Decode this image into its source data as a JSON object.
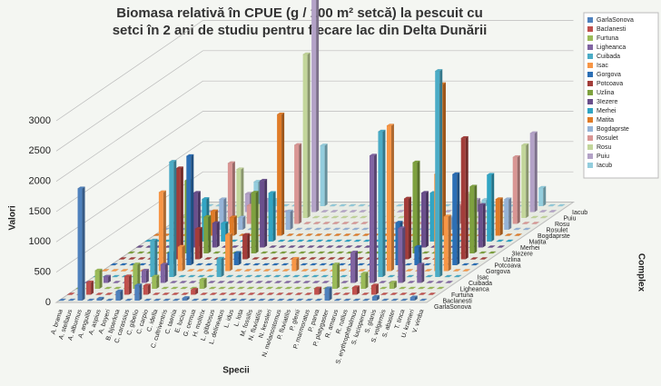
{
  "chart_data": {
    "type": "bar3d",
    "title": [
      "Biomasa relativă în CPUE (g /  100 m² setcă) la pescuit cu",
      "setci în 2 ani de studiu pentru fiecare lac din Delta Dunării"
    ],
    "x_label": "Specii",
    "y_label": "Valori",
    "z_label": "Complex",
    "ylim": [
      0,
      3000
    ],
    "yticks": [
      0,
      500,
      1000,
      1500,
      2000,
      2500,
      3000
    ],
    "grid": true,
    "legend": "right",
    "categories": [
      "A. brama",
      "A. stellatus",
      "A. alburnus",
      "A. anguilla",
      "A. aspius",
      "A. boyeri",
      "B. bjoerkna",
      "C. carassius",
      "C. gibelio",
      "C. carpio",
      "C. idella",
      "C. cultriventris",
      "C. taenia",
      "E. lucius",
      "G. cernua",
      "H. molitrix",
      "L. gibbosus",
      "L. delineatus",
      "L. idus",
      "L. lota",
      "M. fossilis",
      "N. fluviatilis",
      "N. kessleri",
      "N. melanostomus",
      "P. fluviatilis",
      "P. glenii",
      "P. marmoratus",
      "P. parva",
      "P. platygaster",
      "R. amarus",
      "R. rutilus",
      "S. erythrophthalmus",
      "S. lucioperca",
      "S. glanis",
      "S. volgensis",
      "S. abaster",
      "T. tinca",
      "U. krameri",
      "V. vimba"
    ],
    "series": [
      {
        "name": "GarlaSonova",
        "color": "#4f81bd",
        "values": [
          0,
          0,
          1850,
          0,
          30,
          0,
          150,
          0,
          250,
          0,
          0,
          0,
          0,
          40,
          0,
          0,
          0,
          0,
          0,
          0,
          0,
          0,
          0,
          0,
          0,
          0,
          0,
          0,
          200,
          0,
          0,
          0,
          0,
          60,
          0,
          0,
          0,
          50,
          0
        ]
      },
      {
        "name": "Baclanesti",
        "color": "#c0504d",
        "values": [
          0,
          0,
          200,
          0,
          0,
          0,
          300,
          0,
          150,
          0,
          0,
          0,
          0,
          80,
          0,
          0,
          0,
          0,
          0,
          0,
          0,
          0,
          0,
          0,
          0,
          0,
          100,
          0,
          0,
          0,
          120,
          0,
          150,
          0,
          0,
          0,
          0,
          0,
          0
        ]
      },
      {
        "name": "Furtuna",
        "color": "#9bbb59",
        "values": [
          0,
          0,
          300,
          0,
          0,
          0,
          400,
          0,
          200,
          0,
          0,
          0,
          0,
          150,
          0,
          0,
          0,
          0,
          0,
          0,
          0,
          0,
          0,
          0,
          0,
          0,
          0,
          400,
          0,
          0,
          250,
          0,
          0,
          100,
          0,
          0,
          0,
          0,
          0
        ]
      },
      {
        "name": "Ligheanca",
        "color": "#8064a2",
        "values": [
          0,
          0,
          100,
          0,
          0,
          0,
          200,
          0,
          300,
          0,
          0,
          0,
          0,
          0,
          0,
          0,
          0,
          0,
          0,
          0,
          0,
          0,
          0,
          0,
          0,
          0,
          0,
          0,
          500,
          0,
          2100,
          0,
          0,
          900,
          0,
          300,
          0,
          0,
          0
        ]
      },
      {
        "name": "Cuibada",
        "color": "#4bacc6",
        "values": [
          0,
          0,
          0,
          0,
          0,
          0,
          600,
          0,
          1900,
          0,
          0,
          0,
          0,
          300,
          0,
          0,
          0,
          0,
          0,
          0,
          0,
          0,
          0,
          0,
          0,
          0,
          0,
          0,
          0,
          0,
          2400,
          0,
          0,
          0,
          0,
          0,
          3400,
          0,
          0
        ]
      },
      {
        "name": "Isac",
        "color": "#f79646",
        "values": [
          0,
          0,
          0,
          0,
          0,
          0,
          1300,
          0,
          400,
          0,
          0,
          0,
          0,
          600,
          0,
          0,
          0,
          0,
          0,
          0,
          200,
          0,
          0,
          0,
          0,
          0,
          0,
          0,
          0,
          0,
          2400,
          0,
          0,
          0,
          0,
          1600,
          900,
          0,
          0
        ]
      },
      {
        "name": "Gorgova",
        "color": "#2c6fb5",
        "values": [
          0,
          0,
          0,
          0,
          0,
          0,
          200,
          0,
          1800,
          0,
          0,
          0,
          0,
          200,
          0,
          0,
          0,
          0,
          0,
          0,
          0,
          0,
          0,
          0,
          0,
          0,
          0,
          0,
          0,
          0,
          700,
          0,
          300,
          0,
          0,
          0,
          1500,
          0,
          0
        ]
      },
      {
        "name": "Potcoava",
        "color": "#a33d3a",
        "values": [
          0,
          0,
          0,
          0,
          0,
          0,
          1500,
          0,
          500,
          0,
          0,
          0,
          0,
          400,
          0,
          0,
          0,
          0,
          0,
          0,
          0,
          0,
          0,
          0,
          0,
          0,
          0,
          0,
          0,
          0,
          1000,
          0,
          0,
          0,
          0,
          0,
          2000,
          0,
          0
        ]
      },
      {
        "name": "Uzlina",
        "color": "#7ea13f",
        "values": [
          0,
          0,
          0,
          0,
          0,
          0,
          1200,
          0,
          600,
          0,
          0,
          0,
          0,
          1000,
          0,
          0,
          0,
          0,
          0,
          0,
          0,
          0,
          0,
          0,
          0,
          0,
          0,
          0,
          0,
          0,
          1500,
          0,
          0,
          0,
          0,
          0,
          1100,
          0,
          0
        ]
      },
      {
        "name": "3Iezere",
        "color": "#6a4f8c",
        "values": [
          0,
          0,
          0,
          0,
          0,
          0,
          900,
          0,
          400,
          0,
          0,
          0,
          0,
          1100,
          0,
          0,
          0,
          0,
          0,
          0,
          0,
          0,
          0,
          0,
          0,
          0,
          0,
          0,
          0,
          0,
          900,
          0,
          0,
          0,
          0,
          0,
          700,
          0,
          0
        ]
      },
      {
        "name": "Merhei",
        "color": "#31a5c4",
        "values": [
          0,
          0,
          0,
          0,
          0,
          0,
          700,
          0,
          300,
          0,
          0,
          0,
          0,
          800,
          0,
          0,
          0,
          0,
          0,
          0,
          0,
          0,
          0,
          0,
          0,
          0,
          0,
          0,
          0,
          0,
          800,
          0,
          0,
          0,
          0,
          0,
          1100,
          0,
          0
        ]
      },
      {
        "name": "Matita",
        "color": "#e07b27",
        "values": [
          0,
          0,
          0,
          0,
          0,
          0,
          400,
          0,
          300,
          0,
          0,
          0,
          0,
          2000,
          0,
          0,
          0,
          0,
          0,
          0,
          0,
          0,
          0,
          0,
          0,
          0,
          0,
          0,
          0,
          0,
          2500,
          0,
          0,
          0,
          0,
          0,
          600,
          0,
          0
        ]
      },
      {
        "name": "Bogdaprste",
        "color": "#95b3d7",
        "values": [
          0,
          0,
          0,
          0,
          0,
          0,
          500,
          0,
          200,
          0,
          0,
          0,
          0,
          300,
          0,
          0,
          0,
          0,
          0,
          0,
          0,
          0,
          0,
          0,
          0,
          0,
          0,
          0,
          0,
          0,
          200,
          0,
          0,
          0,
          0,
          0,
          500,
          0,
          0
        ]
      },
      {
        "name": "Rosulet",
        "color": "#d99694",
        "values": [
          0,
          0,
          0,
          0,
          0,
          0,
          1000,
          0,
          300,
          0,
          0,
          0,
          0,
          1300,
          0,
          0,
          0,
          0,
          0,
          0,
          0,
          0,
          0,
          0,
          0,
          0,
          0,
          0,
          0,
          0,
          300,
          0,
          0,
          0,
          0,
          0,
          1100,
          0,
          0
        ]
      },
      {
        "name": "Rosu",
        "color": "#c3d69b",
        "values": [
          0,
          0,
          0,
          0,
          0,
          0,
          800,
          0,
          200,
          0,
          0,
          0,
          0,
          2700,
          0,
          0,
          0,
          0,
          0,
          0,
          0,
          0,
          0,
          0,
          0,
          0,
          0,
          0,
          0,
          0,
          400,
          0,
          0,
          0,
          0,
          0,
          1200,
          0,
          0
        ]
      },
      {
        "name": "Puiu",
        "color": "#b3a2c7",
        "values": [
          0,
          0,
          0,
          0,
          0,
          0,
          300,
          0,
          200,
          0,
          0,
          0,
          0,
          3600,
          0,
          0,
          0,
          0,
          0,
          0,
          0,
          0,
          0,
          0,
          0,
          0,
          0,
          0,
          0,
          0,
          200,
          0,
          0,
          0,
          0,
          0,
          1300,
          0,
          0
        ]
      },
      {
        "name": "Iacub",
        "color": "#93cddd",
        "values": [
          0,
          0,
          0,
          0,
          0,
          0,
          400,
          0,
          100,
          0,
          0,
          0,
          0,
          1000,
          0,
          0,
          0,
          0,
          0,
          0,
          0,
          0,
          0,
          0,
          0,
          0,
          0,
          0,
          0,
          0,
          100,
          0,
          0,
          0,
          0,
          0,
          300,
          0,
          0
        ]
      }
    ]
  }
}
